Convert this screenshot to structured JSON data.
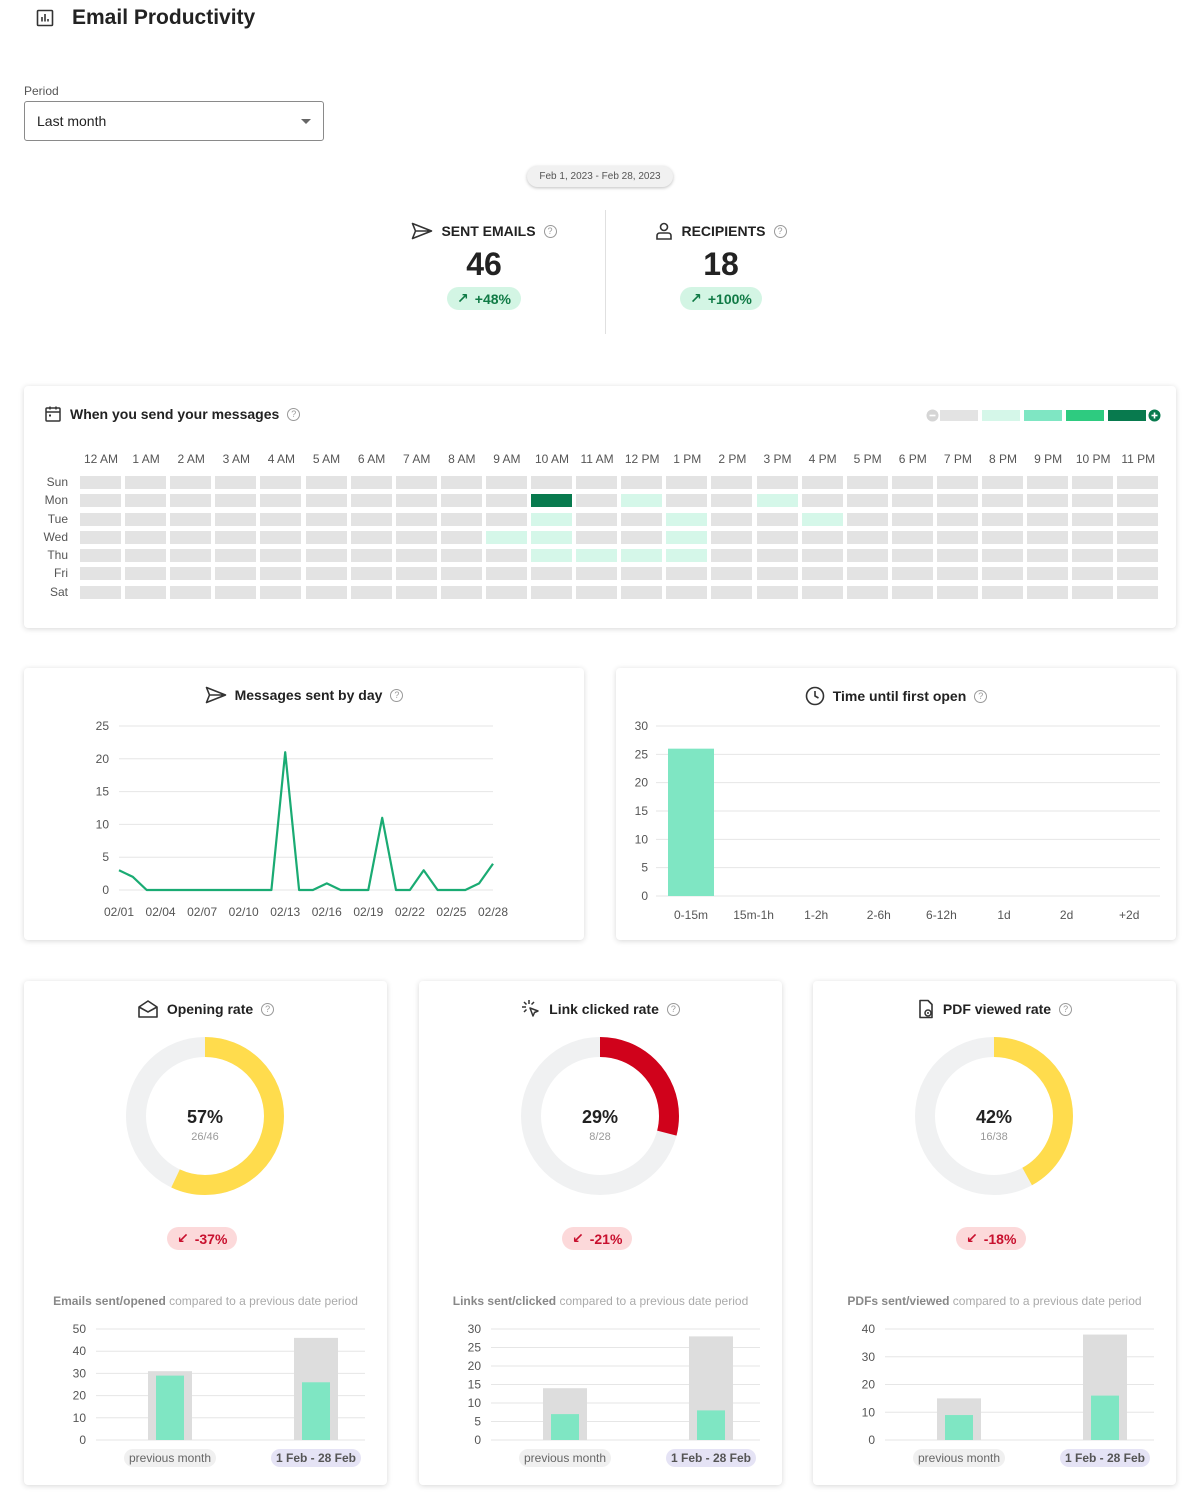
{
  "header": {
    "title": "Email Productivity"
  },
  "period": {
    "label": "Period",
    "value": "Last month"
  },
  "date_range": "Feb 1, 2023 - Feb 28, 2023",
  "kpis": {
    "sent": {
      "label": "SENT EMAILS",
      "value": "46",
      "trend": "+48%"
    },
    "recipients": {
      "label": "RECIPIENTS",
      "value": "18",
      "trend": "+100%"
    }
  },
  "heatmap": {
    "title": "When you send your messages",
    "hours": [
      "12 AM",
      "1 AM",
      "2 AM",
      "3 AM",
      "4 AM",
      "5 AM",
      "6 AM",
      "7 AM",
      "8 AM",
      "9 AM",
      "10 AM",
      "11 AM",
      "12 PM",
      "1 PM",
      "2 PM",
      "3 PM",
      "4 PM",
      "5 PM",
      "6 PM",
      "7 PM",
      "8 PM",
      "9 PM",
      "10 PM",
      "11 PM"
    ],
    "days": [
      "Sun",
      "Mon",
      "Tue",
      "Wed",
      "Thu",
      "Fri",
      "Sat"
    ],
    "legend_colors": [
      "#e3e3e3",
      "#d5f7e9",
      "#7fe6c3",
      "#2ecb80",
      "#087a4e"
    ],
    "active_cells": [
      {
        "day": 1,
        "hour": 10,
        "level": 4
      },
      {
        "day": 1,
        "hour": 12,
        "level": 1
      },
      {
        "day": 1,
        "hour": 15,
        "level": 1
      },
      {
        "day": 2,
        "hour": 10,
        "level": 1
      },
      {
        "day": 2,
        "hour": 13,
        "level": 1
      },
      {
        "day": 2,
        "hour": 16,
        "level": 1
      },
      {
        "day": 3,
        "hour": 9,
        "level": 1
      },
      {
        "day": 3,
        "hour": 10,
        "level": 1
      },
      {
        "day": 3,
        "hour": 13,
        "level": 1
      },
      {
        "day": 4,
        "hour": 10,
        "level": 1
      },
      {
        "day": 4,
        "hour": 11,
        "level": 1
      },
      {
        "day": 4,
        "hour": 12,
        "level": 1
      },
      {
        "day": 4,
        "hour": 13,
        "level": 1
      }
    ]
  },
  "charts": {
    "by_day": {
      "title": "Messages sent by day"
    },
    "first_open": {
      "title": "Time until first open"
    }
  },
  "rates": [
    {
      "title": "Opening rate",
      "pct": "57%",
      "ratio": "26/46",
      "trend": "-37%",
      "caption_bold": "Emails sent/opened",
      "caption_rest": " compared to a previous date period",
      "color": "#ffdc4d",
      "value": 0.57
    },
    {
      "title": "Link clicked rate",
      "pct": "29%",
      "ratio": "8/28",
      "trend": "-21%",
      "caption_bold": "Links sent/clicked",
      "caption_rest": " compared to a previous date period",
      "color": "#d0021b",
      "value": 0.29
    },
    {
      "title": "PDF viewed rate",
      "pct": "42%",
      "ratio": "16/38",
      "trend": "-18%",
      "caption_bold": "PDFs sent/viewed",
      "caption_rest": " compared to a previous date period",
      "color": "#ffdc4d",
      "value": 0.42
    }
  ],
  "chart_data": [
    {
      "type": "line",
      "title": "Messages sent by day",
      "x": [
        "02/01",
        "02/02",
        "02/03",
        "02/04",
        "02/05",
        "02/06",
        "02/07",
        "02/08",
        "02/09",
        "02/10",
        "02/11",
        "02/12",
        "02/13",
        "02/14",
        "02/15",
        "02/16",
        "02/17",
        "02/18",
        "02/19",
        "02/20",
        "02/21",
        "02/22",
        "02/23",
        "02/24",
        "02/25",
        "02/26",
        "02/27",
        "02/28"
      ],
      "x_tick_labels": [
        "02/01",
        "02/04",
        "02/07",
        "02/10",
        "02/13",
        "02/16",
        "02/19",
        "02/22",
        "02/25",
        "02/28"
      ],
      "values": [
        3,
        2,
        0,
        0,
        0,
        0,
        0,
        0,
        0,
        0,
        0,
        0,
        21,
        0,
        0,
        1,
        0,
        0,
        0,
        11,
        0,
        0,
        3,
        0,
        0,
        0,
        1,
        4
      ],
      "ylim": [
        0,
        25
      ],
      "yticks": [
        0,
        5,
        10,
        15,
        20,
        25
      ],
      "color": "#1aab73",
      "grid": true
    },
    {
      "type": "bar",
      "title": "Time until first open",
      "categories": [
        "0-15m",
        "15m-1h",
        "1-2h",
        "2-6h",
        "6-12h",
        "1d",
        "2d",
        "+2d"
      ],
      "values": [
        26,
        0,
        0,
        0,
        0,
        0,
        0,
        0
      ],
      "ylim": [
        0,
        30
      ],
      "yticks": [
        0,
        5,
        10,
        15,
        20,
        25,
        30
      ],
      "color": "#7fe6c3",
      "grid": true
    },
    {
      "type": "bar",
      "title": "Emails sent/opened",
      "categories": [
        "previous month",
        "1 Feb - 28 Feb"
      ],
      "series": [
        {
          "name": "sent",
          "values": [
            31,
            46
          ],
          "color": "#dddddd"
        },
        {
          "name": "opened",
          "values": [
            29,
            26
          ],
          "color": "#7fe6c3"
        }
      ],
      "ylim": [
        0,
        50
      ],
      "yticks": [
        0,
        10,
        20,
        30,
        40,
        50
      ]
    },
    {
      "type": "bar",
      "title": "Links sent/clicked",
      "categories": [
        "previous month",
        "1 Feb - 28 Feb"
      ],
      "series": [
        {
          "name": "sent",
          "values": [
            14,
            28
          ],
          "color": "#dddddd"
        },
        {
          "name": "clicked",
          "values": [
            7,
            8
          ],
          "color": "#7fe6c3"
        }
      ],
      "ylim": [
        0,
        30
      ],
      "yticks": [
        0,
        5,
        10,
        15,
        20,
        25,
        30
      ]
    },
    {
      "type": "bar",
      "title": "PDFs sent/viewed",
      "categories": [
        "previous month",
        "1 Feb - 28 Feb"
      ],
      "series": [
        {
          "name": "sent",
          "values": [
            15,
            38
          ],
          "color": "#dddddd"
        },
        {
          "name": "viewed",
          "values": [
            9,
            16
          ],
          "color": "#7fe6c3"
        }
      ],
      "ylim": [
        0,
        40
      ],
      "yticks": [
        0,
        10,
        20,
        30,
        40
      ]
    }
  ]
}
